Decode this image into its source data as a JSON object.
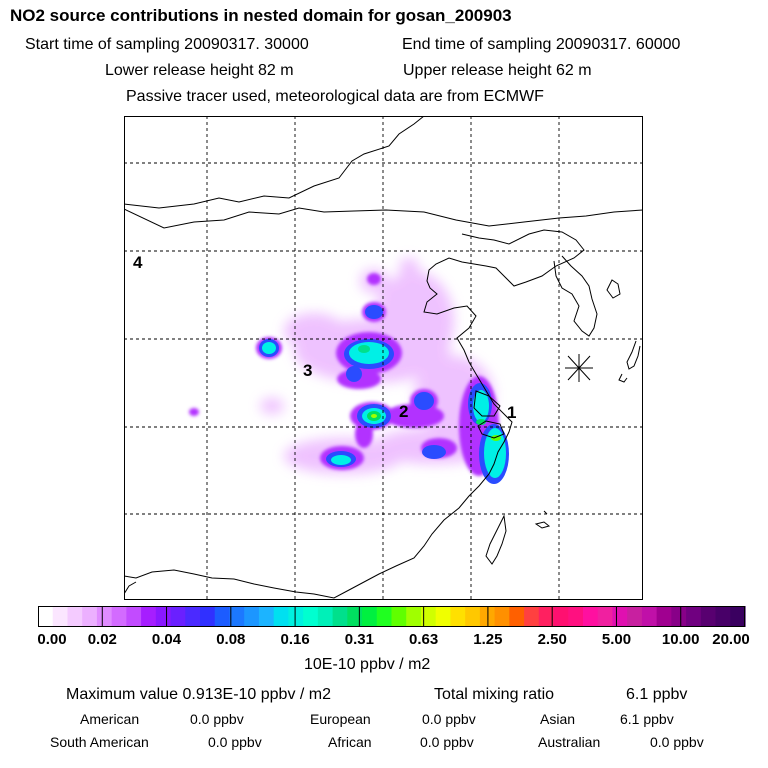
{
  "title": "NO2 source contributions in nested domain for gosan_200903",
  "header": {
    "start_label": "Start time of sampling 20090317. 30000",
    "end_label": "End time of sampling 20090317. 60000",
    "lower_release": "Lower release height   82 m",
    "upper_release": "Upper release height   62 m",
    "tracer_note": "Passive tracer used, meteorological data are from ECMWF"
  },
  "map": {
    "region_labels": [
      "1",
      "2",
      "3",
      "4"
    ],
    "receptor_marker": "station-star"
  },
  "colorbar": {
    "tick_labels": [
      "0.00",
      "0.02",
      "0.04",
      "0.08",
      "0.16",
      "0.31",
      "0.63",
      "1.25",
      "2.50",
      "5.00",
      "10.00",
      "20.00"
    ],
    "colors": [
      "#ffffff",
      "#fbe6ff",
      "#f4cbff",
      "#ecb0ff",
      "#e08cff",
      "#d36bff",
      "#c24bff",
      "#a61eff",
      "#8a18ff",
      "#6a20ff",
      "#4b2aff",
      "#3030ff",
      "#1c5cff",
      "#1c78ff",
      "#1c96ff",
      "#1cb4ff",
      "#00e0f0",
      "#00f0e0",
      "#00ffd0",
      "#00f0b8",
      "#00e08c",
      "#00e060",
      "#00f040",
      "#20ff20",
      "#60ff00",
      "#a0ff00",
      "#d0ff00",
      "#f0ff00",
      "#ffe000",
      "#ffc800",
      "#ffa800",
      "#ff9000",
      "#ff6000",
      "#ff4040",
      "#ff2060",
      "#ff1070",
      "#ff1080",
      "#ff10a0",
      "#f020a0",
      "#e010b0",
      "#c820a0",
      "#c010a8",
      "#a00090",
      "#880088",
      "#700080",
      "#580070",
      "#480068",
      "#3a0060"
    ],
    "units": "10E-10 ppbv / m2"
  },
  "summary": {
    "maximum": "Maximum value  0.913E-10 ppbv / m2",
    "total_label": "Total mixing ratio",
    "total_value": "6.1 ppbv",
    "contributions": [
      {
        "name": "American",
        "value": "0.0 ppbv"
      },
      {
        "name": "European",
        "value": "0.0 ppbv"
      },
      {
        "name": "Asian",
        "value": "6.1 ppbv"
      },
      {
        "name": "South American",
        "value": "0.0 ppbv"
      },
      {
        "name": "African",
        "value": "0.0 ppbv"
      },
      {
        "name": "Australian",
        "value": "0.0 ppbv"
      }
    ]
  }
}
